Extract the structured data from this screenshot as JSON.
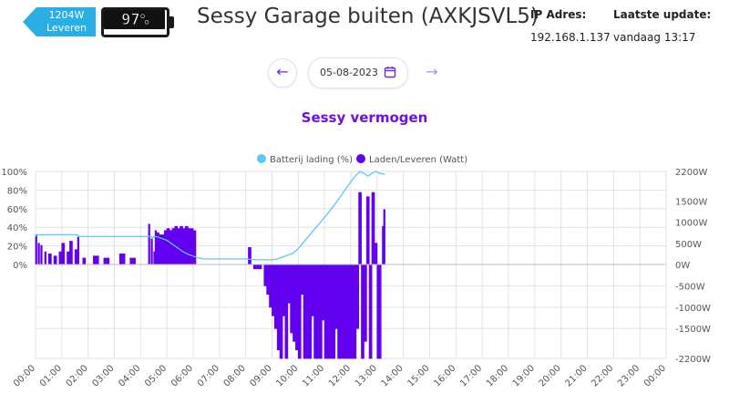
{
  "status": {
    "power_value": "1204W",
    "power_mode": "Leveren",
    "battery_percent": "97%",
    "battery_level": 0.97,
    "power_tag_color": "#29aee6"
  },
  "header": {
    "title": "Sessy Garage buiten (AXKJSVL5)",
    "ip_label": "IP Adres:",
    "ip_value": "192.168.1.137",
    "update_label": "Laatste update:",
    "update_value": "vandaag 13:17"
  },
  "date_nav": {
    "prev_icon": "arrow-left-icon",
    "next_icon": "arrow-right-icon",
    "date_value": "05-08-2023",
    "calendar_icon": "calendar-icon"
  },
  "chart_data": {
    "type": "line",
    "title": "Sessy vermogen",
    "legend_position": "top",
    "grid": true,
    "x_ticks": [
      "00:00",
      "01:00",
      "02:00",
      "03:00",
      "04:00",
      "05:00",
      "06:00",
      "07:00",
      "08:00",
      "09:00",
      "10:00",
      "11:00",
      "12:00",
      "13:00",
      "14:00",
      "15:00",
      "16:00",
      "17:00",
      "18:00",
      "19:00",
      "20:00",
      "21:00",
      "22:00",
      "23:00",
      "00:00"
    ],
    "y_left_ticks": [
      "100%",
      "80%",
      "60%",
      "40%",
      "20%",
      "0%"
    ],
    "y_right_ticks": [
      "2200W",
      "1500W",
      "1000W",
      "500W",
      "0W",
      "-500W",
      "-1000W",
      "-1500W",
      "-2200W"
    ],
    "xlim_hours": [
      0,
      24
    ],
    "ylim_left": [
      0,
      100
    ],
    "ylim_right": [
      -2200,
      2200
    ],
    "series": [
      {
        "name": "Batterij lading (%)",
        "color": "#5bc8f5",
        "kind": "line",
        "axis": "left",
        "x": [
          0,
          0.02,
          0.1,
          0.6,
          1.6,
          1.62,
          1.7,
          2.0,
          3.0,
          4.0,
          4.4,
          4.45,
          4.5,
          4.6,
          4.8,
          5.0,
          5.2,
          5.4,
          5.6,
          5.8,
          6.0,
          6.2,
          6.4,
          6.8,
          7.2,
          7.6,
          8.0,
          8.4,
          8.8,
          9.0,
          9.2,
          9.4,
          9.6,
          9.8,
          10.0,
          10.2,
          10.5,
          10.8,
          11.1,
          11.4,
          11.7,
          12.0,
          12.2,
          12.35,
          12.5,
          12.65,
          12.8,
          12.95,
          13.1,
          13.3
        ],
        "y": [
          30,
          32,
          32,
          32,
          32,
          30,
          30,
          30,
          30,
          30,
          30,
          28,
          30,
          30,
          28,
          26,
          22,
          18,
          14,
          11,
          9,
          7,
          6,
          6,
          6,
          6,
          6,
          5,
          5,
          5,
          6,
          8,
          10,
          12,
          17,
          24,
          34,
          44,
          54,
          65,
          77,
          89,
          96,
          100,
          98,
          95,
          98,
          100,
          98,
          97
        ]
      },
      {
        "name": "Laden/Leveren (Watt)",
        "color": "#6200f0",
        "kind": "area",
        "axis": "right",
        "x": [
          0,
          0.05,
          0.1,
          0.15,
          0.2,
          0.25,
          0.3,
          0.35,
          0.4,
          0.5,
          0.6,
          0.7,
          0.8,
          0.9,
          1.0,
          1.1,
          1.2,
          1.3,
          1.4,
          1.5,
          1.6,
          1.65,
          1.7,
          1.8,
          1.9,
          2.0,
          2.2,
          2.4,
          2.6,
          2.8,
          3.0,
          3.2,
          3.4,
          3.6,
          3.8,
          4.0,
          4.2,
          4.3,
          4.35,
          4.4,
          4.45,
          4.5,
          4.55,
          4.6,
          4.7,
          4.8,
          4.9,
          5.0,
          5.1,
          5.2,
          5.3,
          5.4,
          5.5,
          5.6,
          5.7,
          5.8,
          5.9,
          6.0,
          6.1,
          6.2,
          6.3,
          6.4,
          7.0,
          7.5,
          8.0,
          8.1,
          8.2,
          8.3,
          8.6,
          8.7,
          8.8,
          8.9,
          9.0,
          9.1,
          9.2,
          9.3,
          9.4,
          9.5,
          9.6,
          9.7,
          9.8,
          9.9,
          10.0,
          10.1,
          10.2,
          10.3,
          10.4,
          10.5,
          10.6,
          10.7,
          10.8,
          10.9,
          11.0,
          11.1,
          11.2,
          11.3,
          11.4,
          11.5,
          11.6,
          11.7,
          11.8,
          11.9,
          12.0,
          12.1,
          12.2,
          12.3,
          12.4,
          12.5,
          12.6,
          12.7,
          12.8,
          12.9,
          13.0,
          13.1,
          13.15,
          13.2,
          13.25,
          13.3
        ],
        "y": [
          700,
          0,
          500,
          0,
          450,
          0,
          0,
          300,
          0,
          250,
          0,
          200,
          0,
          300,
          500,
          0,
          300,
          550,
          0,
          350,
          650,
          0,
          0,
          150,
          0,
          0,
          200,
          0,
          150,
          0,
          0,
          250,
          0,
          150,
          0,
          0,
          0,
          950,
          0,
          600,
          0,
          300,
          800,
          750,
          700,
          700,
          800,
          850,
          800,
          850,
          900,
          850,
          900,
          850,
          900,
          850,
          850,
          800,
          0,
          0,
          0,
          0,
          0,
          0,
          0,
          400,
          0,
          -100,
          0,
          -500,
          -700,
          -1000,
          -1200,
          -1500,
          -2000,
          -2200,
          -1200,
          -2200,
          -900,
          -1600,
          -1800,
          -2000,
          -2200,
          -700,
          -2200,
          -2200,
          -2200,
          -1200,
          -2200,
          -2200,
          -2200,
          -1300,
          -2200,
          -2200,
          -2200,
          -2200,
          -1500,
          -2200,
          -2200,
          -2200,
          -2200,
          -2200,
          -2200,
          -2200,
          -1500,
          1700,
          -2200,
          -1800,
          1600,
          -2200,
          1700,
          500,
          -2200,
          -2200,
          0,
          900,
          1300,
          0
        ]
      }
    ]
  }
}
